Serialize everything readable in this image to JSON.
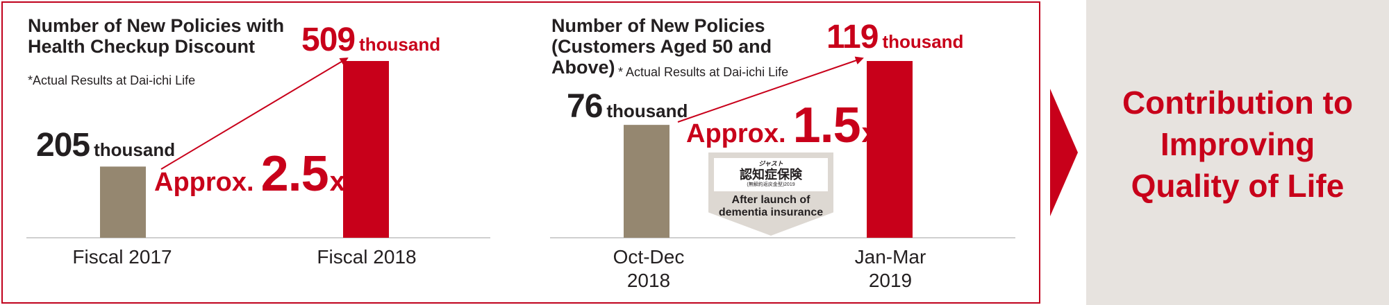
{
  "colors": {
    "gray_bar": "#958770",
    "red_bar": "#c8001a",
    "arrow": "#c8001a",
    "baseline": "#bfbfbf",
    "panel_bg": "#e7e3df"
  },
  "chart_data": [
    {
      "type": "bar",
      "title_lines": [
        "Number of New Policies with",
        "Health Checkup Discount"
      ],
      "note": "*Actual Results at Dai-ichi Life",
      "categories": [
        "Fiscal 2017",
        "Fiscal 2018"
      ],
      "values": [
        205,
        509
      ],
      "unit": "thousand",
      "value_labels": [
        "205",
        "509"
      ],
      "multiplier": {
        "prefix": "Approx.",
        "value": "2.5",
        "suffix": "x"
      },
      "bar_colors": [
        "#958770",
        "#c8001a"
      ]
    },
    {
      "type": "bar",
      "title_lines": [
        "Number of New Policies",
        "(Customers Aged 50 and",
        "Above)"
      ],
      "note": "* Actual Results at Dai-ichi Life",
      "categories": [
        [
          "Oct-Dec",
          "2018"
        ],
        [
          "Jan-Mar",
          "2019"
        ]
      ],
      "values": [
        76,
        119
      ],
      "unit": "thousand",
      "value_labels": [
        "76",
        "119"
      ],
      "multiplier": {
        "prefix": "Approx.",
        "value": "1.5",
        "suffix": "x"
      },
      "bar_colors": [
        "#958770",
        "#c8001a"
      ],
      "badge": {
        "logo_small": "ジャスト",
        "logo_main": "認知症保険",
        "logo_sub": "(無解約返戻金型)2019",
        "caption_lines": [
          "After launch of",
          "dementia insurance"
        ]
      }
    }
  ],
  "conclusion": {
    "lines": [
      "Contribution to",
      "Improving",
      "Quality of Life"
    ]
  }
}
